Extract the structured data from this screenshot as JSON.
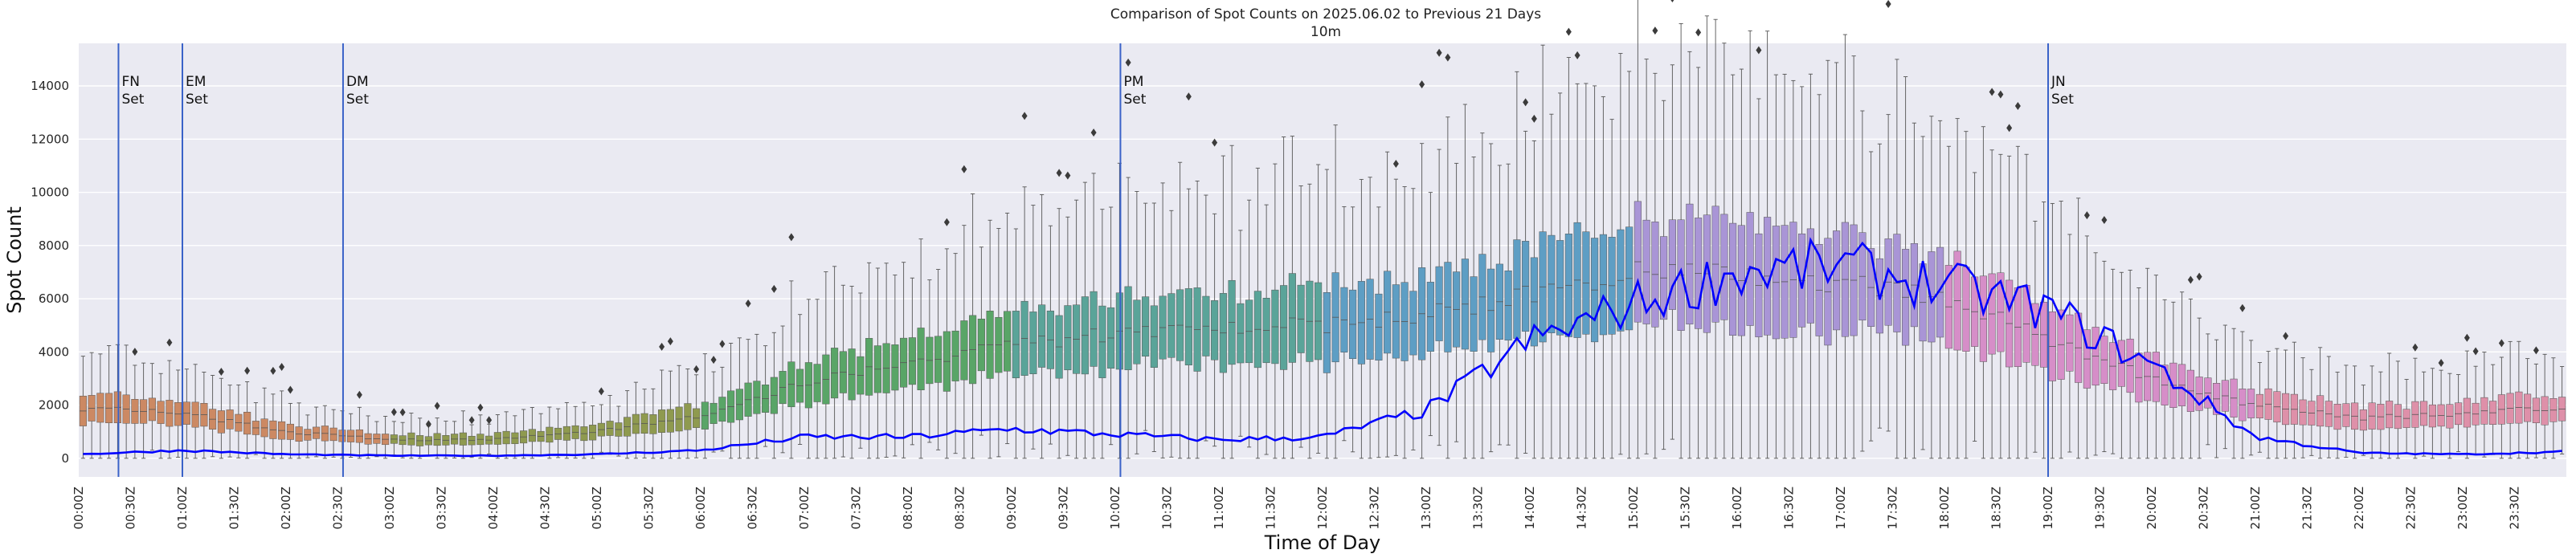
{
  "chart_data": {
    "type": "box_with_line",
    "title": "Comparison of Spot Counts on 2025.06.02 to Previous 21 Days",
    "subtitle": "10m",
    "xlabel": "Time of Day",
    "ylabel": "Spot Count",
    "ylim": [
      -700,
      15600
    ],
    "yticks": [
      0,
      2000,
      4000,
      6000,
      8000,
      10000,
      12000,
      14000
    ],
    "ytick_labels": [
      "0",
      "2000",
      "4000",
      "6000",
      "8000",
      "10000",
      "12000",
      "14000"
    ],
    "xtick_labels": [
      "00:00Z",
      "00:30Z",
      "01:00Z",
      "01:30Z",
      "02:00Z",
      "02:30Z",
      "03:00Z",
      "03:30Z",
      "04:00Z",
      "04:30Z",
      "05:00Z",
      "05:30Z",
      "06:00Z",
      "06:30Z",
      "07:00Z",
      "07:30Z",
      "08:00Z",
      "08:30Z",
      "09:00Z",
      "09:30Z",
      "10:00Z",
      "10:30Z",
      "11:00Z",
      "11:30Z",
      "12:00Z",
      "12:30Z",
      "13:00Z",
      "13:30Z",
      "14:00Z",
      "14:30Z",
      "15:00Z",
      "15:30Z",
      "16:00Z",
      "16:30Z",
      "17:00Z",
      "17:30Z",
      "18:00Z",
      "18:30Z",
      "19:00Z",
      "19:30Z",
      "20:00Z",
      "20:30Z",
      "21:00Z",
      "21:30Z",
      "22:00Z",
      "22:30Z",
      "23:00Z",
      "23:30Z"
    ],
    "slots_per_hour": 12,
    "median_profile": {
      "hours": [
        0,
        1,
        2,
        3,
        4,
        5,
        6,
        7,
        8,
        9,
        10,
        11,
        12,
        13,
        14,
        15,
        16,
        17,
        18,
        19,
        20,
        21,
        22,
        23,
        24
      ],
      "values": [
        1900,
        1700,
        1000,
        700,
        700,
        1000,
        1600,
        2800,
        3600,
        4200,
        4700,
        5000,
        5000,
        5400,
        6200,
        7000,
        7000,
        6600,
        6100,
        4500,
        3000,
        2000,
        1500,
        1700,
        1900
      ]
    },
    "current_day_profile": {
      "hours": [
        0,
        1,
        2,
        3,
        4,
        5,
        6,
        7,
        8,
        9,
        10,
        11,
        12,
        13,
        14,
        15,
        16,
        17,
        18,
        19,
        20,
        21,
        22,
        23,
        24
      ],
      "values": [
        150,
        300,
        150,
        100,
        100,
        150,
        300,
        800,
        800,
        1100,
        900,
        700,
        800,
        1800,
        4400,
        5800,
        7000,
        7200,
        6500,
        5600,
        3500,
        800,
        200,
        150,
        250
      ]
    },
    "markers": [
      {
        "label": "FN\nSet",
        "time": "00:23Z"
      },
      {
        "label": "EM\nSet",
        "time": "01:00Z"
      },
      {
        "label": "DM\nSet",
        "time": "02:33Z"
      },
      {
        "label": "PM\nSet",
        "time": "10:03Z"
      },
      {
        "label": "JN\nSet",
        "time": "19:00Z"
      }
    ],
    "colors": {
      "background": "#eaeaf2",
      "grid": "#ffffff",
      "current_line": "#0000ff",
      "marker_line": "#3a62c8",
      "box_edge": "#555555",
      "palette": [
        "#cc8963",
        "#8f9a4f",
        "#59a567",
        "#5aa499",
        "#5e9ec4",
        "#a995d6",
        "#d68ec8",
        "#de90a9"
      ]
    }
  }
}
